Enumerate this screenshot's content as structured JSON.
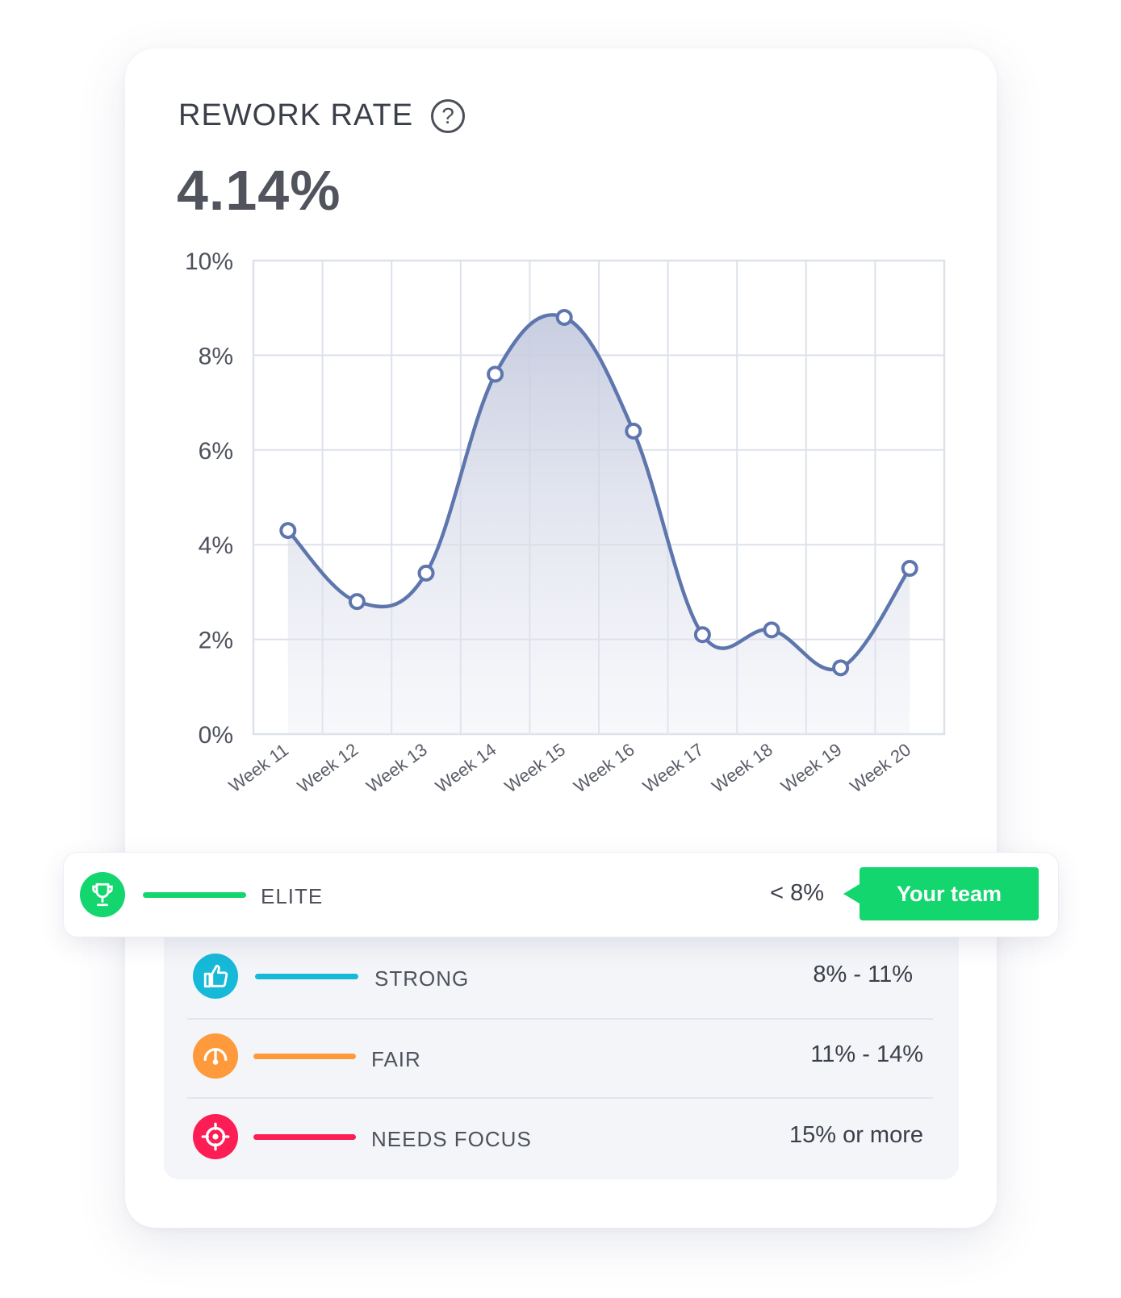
{
  "metric": {
    "title": "REWORK RATE",
    "help_glyph": "?",
    "value": "4.14%"
  },
  "chart_data": {
    "type": "area",
    "title": "",
    "xlabel": "",
    "ylabel": "",
    "ylim": [
      0,
      10
    ],
    "y_ticks": [
      0,
      2,
      4,
      6,
      8,
      10
    ],
    "y_tick_labels": [
      "0%",
      "2%",
      "4%",
      "6%",
      "8%",
      "10%"
    ],
    "categories": [
      "Week 11",
      "Week 12",
      "Week 13",
      "Week 14",
      "Week 15",
      "Week 16",
      "Week 17",
      "Week 18",
      "Week 19",
      "Week 20"
    ],
    "series": [
      {
        "values": [
          4.3,
          2.8,
          3.4,
          7.6,
          8.8,
          6.4,
          2.1,
          2.2,
          1.4,
          3.5
        ]
      }
    ],
    "grid": true,
    "colors": {
      "line": "#5e76ad",
      "fill": "#c7cde0",
      "grid": "#dde1ea",
      "marker_fill": "#ffffff"
    }
  },
  "benchmarks": [
    {
      "id": "elite",
      "label": "ELITE",
      "range": "< 8%",
      "color": "#13d66f",
      "icon": "trophy-icon",
      "highlighted": true
    },
    {
      "id": "strong",
      "label": "STRONG",
      "range": "8% - 11%",
      "color": "#17b9d8",
      "icon": "thumbs-up-icon"
    },
    {
      "id": "fair",
      "label": "FAIR",
      "range": "11% - 14%",
      "color": "#fe9a3b",
      "icon": "gauge-icon"
    },
    {
      "id": "needs_focus",
      "label": "NEEDS FOCUS",
      "range": "15% or more",
      "color": "#fd1d55",
      "icon": "target-icon"
    }
  ],
  "your_team_badge": "Your team"
}
